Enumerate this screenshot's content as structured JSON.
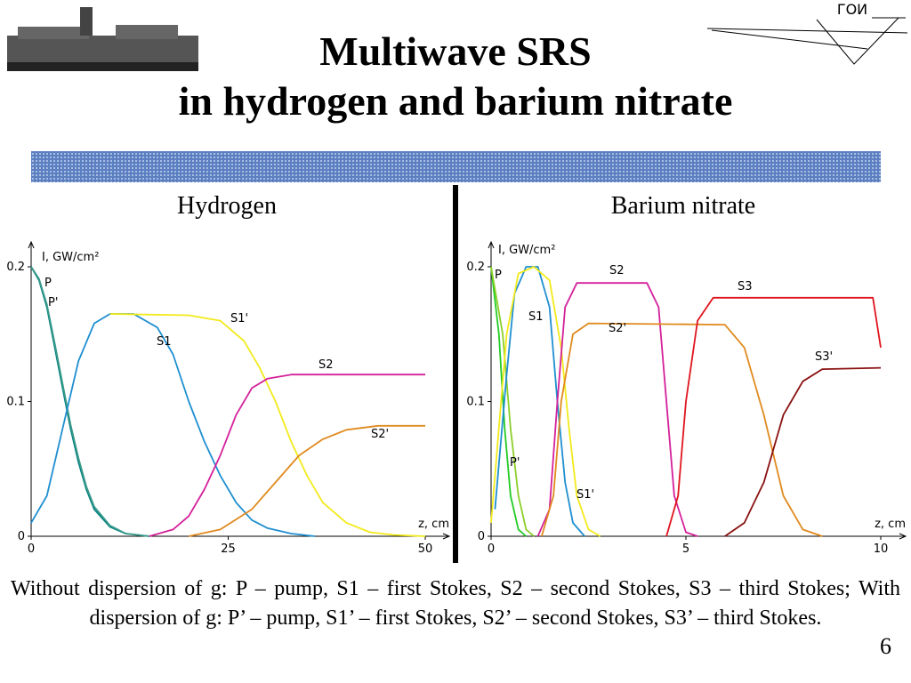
{
  "title_line1": "Multiwave SRS",
  "title_line2": "in hydrogen and barium nitrate",
  "logo_text": "ГОИ",
  "caption": "Without dispersion of g: P – pump, S1 – first Stokes, S2 – second Stokes, S3 – third Stokes; With dispersion of g: P’ – pump, S1’ – first Stokes, S2’ – second Stokes, S3’ – third Stokes.",
  "page_number": "6",
  "chart_data": [
    {
      "type": "line",
      "title": "Hydrogen",
      "x_label": "z, cm",
      "y_label": "I, GW/cm²",
      "xlim": [
        0,
        50
      ],
      "xticks": [
        0,
        25,
        50
      ],
      "ylim": [
        0,
        0.2
      ],
      "yticks": [
        0,
        0.1,
        0.2
      ],
      "series": [
        {
          "name": "P",
          "color": "#008080",
          "x": [
            0,
            1,
            2,
            3,
            4,
            5,
            6,
            7,
            8,
            10,
            12,
            15
          ],
          "values": [
            0.2,
            0.19,
            0.17,
            0.14,
            0.11,
            0.08,
            0.055,
            0.035,
            0.02,
            0.007,
            0.002,
            0
          ]
        },
        {
          "name": "P'",
          "color": "#3a9a8a",
          "x": [
            0,
            1,
            2,
            3,
            4,
            5,
            6,
            7,
            8,
            10,
            12,
            15
          ],
          "values": [
            0.2,
            0.191,
            0.172,
            0.143,
            0.113,
            0.083,
            0.058,
            0.037,
            0.022,
            0.008,
            0.002,
            0
          ]
        },
        {
          "name": "S1",
          "color": "#1f8fd0",
          "x": [
            0,
            2,
            4,
            6,
            8,
            10,
            13,
            16,
            18,
            20,
            22,
            24,
            26,
            28,
            30,
            33,
            36
          ],
          "values": [
            0.01,
            0.03,
            0.08,
            0.13,
            0.158,
            0.165,
            0.165,
            0.155,
            0.135,
            0.1,
            0.07,
            0.045,
            0.025,
            0.012,
            0.006,
            0.002,
            0
          ]
        },
        {
          "name": "S1'",
          "color": "#f2ea1a",
          "x": [
            10,
            20,
            24,
            27,
            29,
            31,
            33,
            35,
            37,
            40,
            43,
            46,
            50
          ],
          "values": [
            0.165,
            0.164,
            0.16,
            0.145,
            0.125,
            0.1,
            0.07,
            0.045,
            0.025,
            0.01,
            0.003,
            0.001,
            0
          ]
        },
        {
          "name": "S2",
          "color": "#d4209a",
          "x": [
            15,
            18,
            20,
            22,
            24,
            26,
            28,
            30,
            33,
            50
          ],
          "values": [
            0,
            0.005,
            0.015,
            0.035,
            0.06,
            0.09,
            0.11,
            0.117,
            0.12,
            0.12
          ]
        },
        {
          "name": "S2'",
          "color": "#e08a1e",
          "x": [
            20,
            24,
            28,
            31,
            34,
            37,
            40,
            44,
            50
          ],
          "values": [
            0,
            0.005,
            0.02,
            0.04,
            0.06,
            0.072,
            0.079,
            0.082,
            0.082
          ]
        }
      ]
    },
    {
      "type": "line",
      "title": "Barium nitrate",
      "x_label": "z, cm",
      "y_label": "I, GW/cm²",
      "xlim": [
        0,
        10
      ],
      "xticks": [
        0,
        5,
        10
      ],
      "ylim": [
        0,
        0.2
      ],
      "yticks": [
        0,
        0.1,
        0.2
      ],
      "series": [
        {
          "name": "P",
          "color": "#22cc22",
          "x": [
            0,
            0.2,
            0.35,
            0.5,
            0.7,
            0.9
          ],
          "values": [
            0.2,
            0.15,
            0.08,
            0.03,
            0.005,
            0
          ]
        },
        {
          "name": "P'",
          "color": "#8ccf2a",
          "x": [
            0,
            0.3,
            0.5,
            0.7,
            0.9,
            1.1
          ],
          "values": [
            0.2,
            0.15,
            0.08,
            0.03,
            0.005,
            0
          ]
        },
        {
          "name": "S1",
          "color": "#1f8fd0",
          "x": [
            0.1,
            0.4,
            0.6,
            0.9,
            1.2,
            1.5,
            1.7,
            1.9,
            2.1,
            2.4
          ],
          "values": [
            0.02,
            0.12,
            0.18,
            0.2,
            0.2,
            0.17,
            0.1,
            0.04,
            0.01,
            0
          ]
        },
        {
          "name": "S1'",
          "color": "#f2ea1a",
          "x": [
            0,
            0.4,
            0.7,
            1.1,
            1.5,
            1.8,
            2.0,
            2.2,
            2.5,
            2.8
          ],
          "values": [
            0.01,
            0.15,
            0.195,
            0.2,
            0.19,
            0.14,
            0.08,
            0.03,
            0.005,
            0
          ]
        },
        {
          "name": "S2",
          "color": "#d4209a",
          "x": [
            1.2,
            1.5,
            1.7,
            1.9,
            2.2,
            4.0,
            4.3,
            4.5,
            4.7,
            5.0,
            5.3
          ],
          "values": [
            0,
            0.02,
            0.1,
            0.17,
            0.188,
            0.188,
            0.17,
            0.1,
            0.03,
            0.003,
            0
          ]
        },
        {
          "name": "S2'",
          "color": "#e08a1e",
          "x": [
            1.3,
            1.6,
            1.8,
            2.1,
            2.5,
            6.0,
            6.5,
            7.0,
            7.5,
            8.0,
            8.5
          ],
          "values": [
            0,
            0.03,
            0.1,
            0.15,
            0.158,
            0.157,
            0.14,
            0.09,
            0.03,
            0.005,
            0
          ]
        },
        {
          "name": "S3",
          "color": "#e0141e",
          "x": [
            4.5,
            4.8,
            5.0,
            5.3,
            5.7,
            9.8,
            10
          ],
          "values": [
            0,
            0.03,
            0.1,
            0.16,
            0.177,
            0.177,
            0.14
          ]
        },
        {
          "name": "S3'",
          "color": "#8a1010",
          "x": [
            6,
            6.5,
            7.0,
            7.5,
            8.0,
            8.5,
            10
          ],
          "values": [
            0,
            0.01,
            0.04,
            0.09,
            0.115,
            0.124,
            0.125
          ]
        }
      ]
    }
  ]
}
